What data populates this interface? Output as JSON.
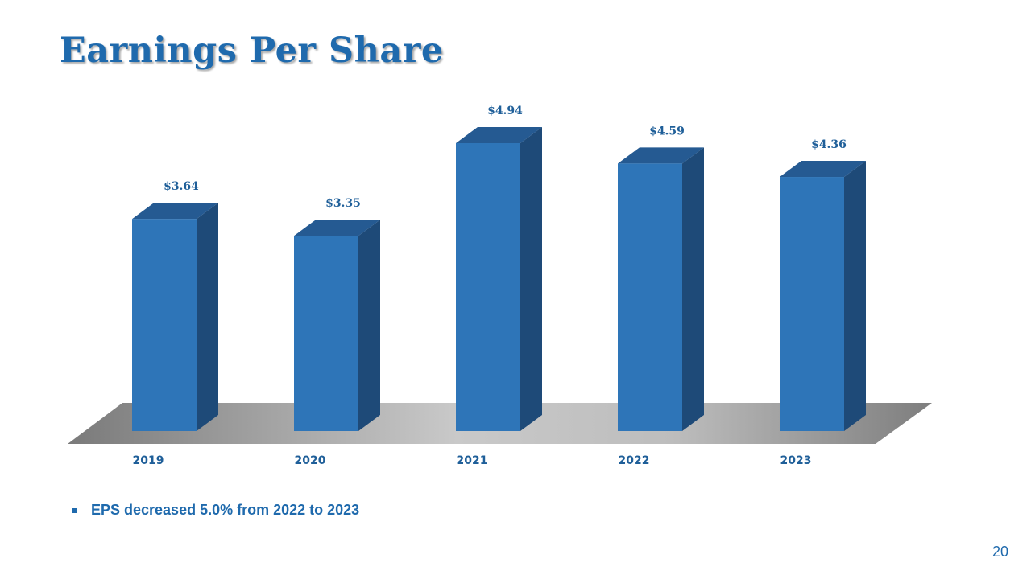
{
  "slide": {
    "title": "Earnings Per Share",
    "bullets": [
      "EPS decreased 5.0% from 2022 to 2023"
    ],
    "page_number": "20"
  },
  "colors": {
    "title": "#1f6aad",
    "bar_front": "#2e75b8",
    "bar_side": "#1e4a78",
    "bar_top": "#255a92",
    "label": "#1f5f99",
    "floor": "#b8b8b8"
  },
  "chart_data": {
    "type": "bar",
    "style": "3d-column",
    "categories": [
      "2019",
      "2020",
      "2021",
      "2022",
      "2023"
    ],
    "values": [
      3.64,
      3.35,
      4.94,
      4.59,
      4.36
    ],
    "data_labels": [
      "$3.64",
      "$3.35",
      "$4.94",
      "$4.59",
      "$4.36"
    ],
    "title": "",
    "xlabel": "",
    "ylabel": "",
    "ylim": [
      0,
      4.94
    ],
    "grid": false,
    "legend": "none"
  }
}
